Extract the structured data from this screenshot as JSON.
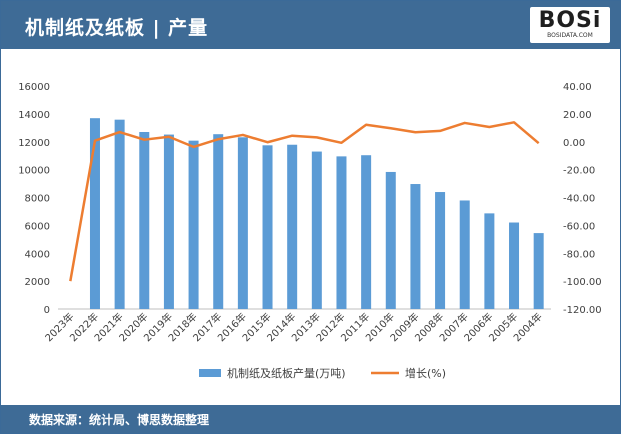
{
  "header": {
    "title": "机制纸及纸板 | 产量"
  },
  "logo": {
    "word": "BOSi",
    "sub": "BOSIDATA.COM"
  },
  "footer": {
    "source": "数据来源：统计局、博思数据整理"
  },
  "colors": {
    "header_bg": "#3e6b96",
    "bar": "#5b9bd5",
    "line": "#ed7d31"
  },
  "chart_data": {
    "type": "bar+line",
    "categories": [
      "2023年",
      "2022年",
      "2021年",
      "2020年",
      "2019年",
      "2018年",
      "2017年",
      "2016年",
      "2015年",
      "2014年",
      "2013年",
      "2012年",
      "2011年",
      "2010年",
      "2009年",
      "2008年",
      "2007年",
      "2006年",
      "2005年",
      "2004年"
    ],
    "series": [
      {
        "name": "机制纸及纸板产量(万吨)",
        "type": "bar",
        "axis": "left",
        "values": [
          0,
          13690,
          13584,
          12700,
          12515,
          12079,
          12542,
          12319,
          11745,
          11786,
          11296,
          10951,
          11034,
          9833,
          8966,
          8392,
          7787,
          6861,
          6205,
          5446
        ]
      },
      {
        "name": "增长(%)",
        "type": "line",
        "axis": "right",
        "values": [
          -100.0,
          0.78,
          6.96,
          1.48,
          3.61,
          -3.69,
          1.81,
          4.89,
          -0.35,
          4.34,
          3.15,
          -0.75,
          12.22,
          9.67,
          6.84,
          7.77,
          13.5,
          10.57,
          13.94,
          -1.0
        ]
      }
    ],
    "yleft": {
      "min": 0,
      "max": 16000,
      "step": 2000,
      "ticks": [
        "0",
        "2000",
        "4000",
        "6000",
        "8000",
        "10000",
        "12000",
        "14000",
        "16000"
      ]
    },
    "yright": {
      "min": -120,
      "max": 40,
      "step": 20,
      "ticks": [
        "-120.00",
        "-100.00",
        "-80.00",
        "-60.00",
        "-40.00",
        "-20.00",
        "0.00",
        "20.00",
        "40.00"
      ]
    },
    "legend": {
      "position": "bottom",
      "items": [
        "机制纸及纸板产量(万吨)",
        "增长(%)"
      ]
    },
    "grid": false
  }
}
